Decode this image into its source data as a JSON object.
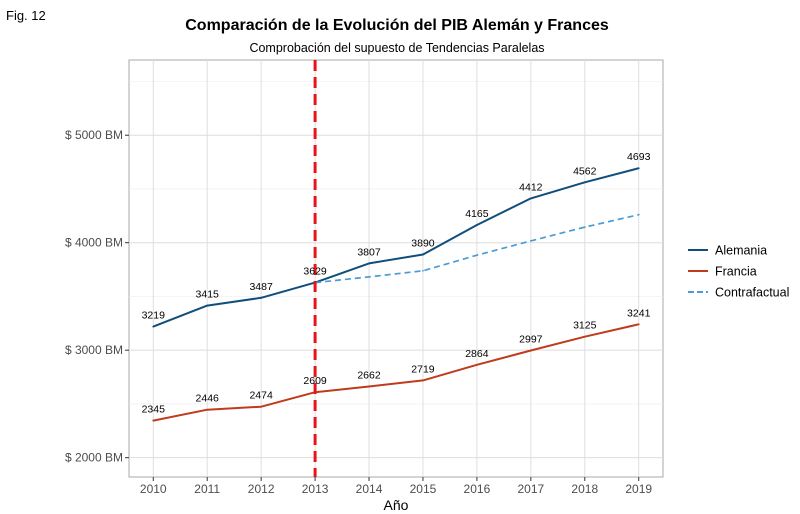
{
  "figure": {
    "label": "Fig. 12"
  },
  "chart_data": {
    "type": "line",
    "title": "Comparación de la Evolución del PIB Alemán y Frances",
    "subtitle": "Comprobación del supuesto de Tendencias Paralelas",
    "xlabel": "Año",
    "ylabel": "",
    "x": [
      2010,
      2011,
      2012,
      2013,
      2014,
      2015,
      2016,
      2017,
      2018,
      2019
    ],
    "xlim": [
      2009.55,
      2019.45
    ],
    "ylim": [
      1820,
      5700
    ],
    "yticks": [
      2000,
      3000,
      4000,
      5000
    ],
    "ytick_labels": [
      "$ 2000 BM",
      "$ 3000 BM",
      "$ 4000 BM",
      "$ 5000 BM"
    ],
    "grid": true,
    "legend_position": "right",
    "series": [
      {
        "name": "Alemania",
        "color": "#114e7a",
        "style": "solid",
        "x": [
          2010,
          2011,
          2012,
          2013,
          2014,
          2015,
          2016,
          2017,
          2018,
          2019
        ],
        "values": [
          3219,
          3415,
          3487,
          3629,
          3807,
          3890,
          4165,
          4412,
          4562,
          4693
        ],
        "labels": [
          "3219",
          "3415",
          "3487",
          "3629",
          "3807",
          "3890",
          "4165",
          "4412",
          "4562",
          "4693"
        ]
      },
      {
        "name": "Francia",
        "color": "#c03b1c",
        "style": "solid",
        "x": [
          2010,
          2011,
          2012,
          2013,
          2014,
          2015,
          2016,
          2017,
          2018,
          2019
        ],
        "values": [
          2345,
          2446,
          2474,
          2609,
          2662,
          2719,
          2864,
          2997,
          3125,
          3241
        ],
        "labels": [
          "2345",
          "2446",
          "2474",
          "2609",
          "2662",
          "2719",
          "2864",
          "2997",
          "3125",
          "3241"
        ]
      },
      {
        "name": "Contrafactual",
        "color": "#4a9bd6",
        "style": "dashed",
        "x": [
          2013,
          2014,
          2015,
          2016,
          2017,
          2018,
          2019
        ],
        "values": [
          3629,
          3682,
          3739,
          3884,
          4017,
          4145,
          4261
        ],
        "labels": []
      }
    ],
    "annotations": [
      {
        "type": "vline",
        "x": 2013,
        "color": "#e8141b",
        "style": "dashed"
      }
    ]
  }
}
